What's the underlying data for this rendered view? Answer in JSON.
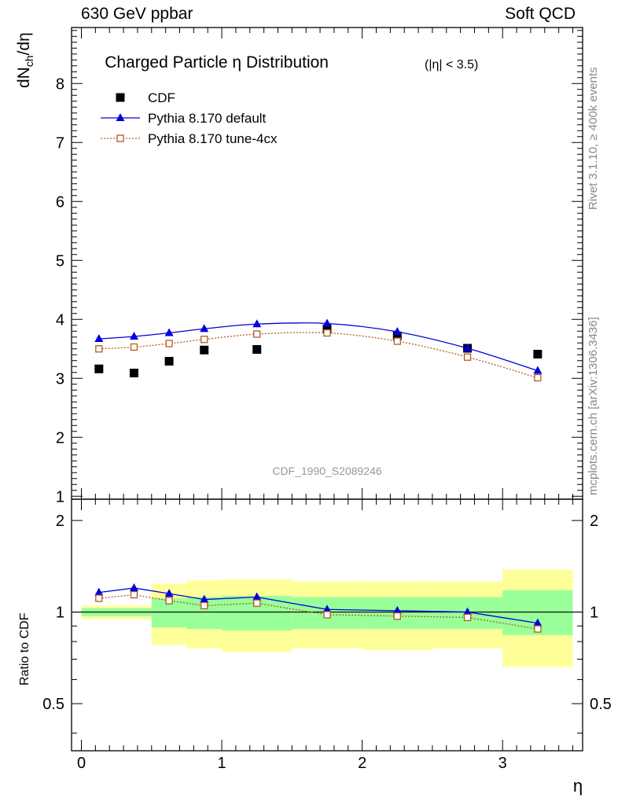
{
  "header": {
    "left": "630 GeV ppbar",
    "right": "Soft QCD"
  },
  "side_text": {
    "rivet": "Rivet 3.1.10, ≥ 400k events",
    "mcplots": "mcplots.cern.ch [arXiv:1306.3436]"
  },
  "chart_data": {
    "type": "scatter",
    "title": "Charged Particle η Distribution",
    "title_suffix": "(|η| < 3.5)",
    "analysis_label": "CDF_1990_S2089246",
    "xlabel": "η",
    "ylabel": "dNch/dη",
    "ylabel_main": "dN",
    "ylabel_sub": "ch",
    "ylabel_tail": "/dη",
    "ratio_ylabel": "Ratio to CDF",
    "xlim": [
      -0.07,
      3.57
    ],
    "ylim": [
      0.95,
      8.95
    ],
    "ratio_ylim": [
      0.35,
      2.35
    ],
    "xticks": [
      0,
      1,
      2,
      3
    ],
    "yticks": [
      1,
      2,
      3,
      4,
      5,
      6,
      7,
      8
    ],
    "ratio_yticks_labeled": [
      0.5,
      1,
      2
    ],
    "legend_position": "top-left",
    "x": [
      0.125,
      0.375,
      0.625,
      0.875,
      1.25,
      1.75,
      2.25,
      2.75,
      3.25
    ],
    "series": [
      {
        "name": "CDF",
        "style": "data",
        "color": "#000000",
        "marker": "square",
        "values": [
          3.16,
          3.09,
          3.29,
          3.48,
          3.49,
          3.84,
          3.72,
          3.51,
          3.41
        ]
      },
      {
        "name": "Pythia 8.170 default",
        "style": "solid",
        "color": "#0000dd",
        "marker": "triangle",
        "values": [
          3.67,
          3.71,
          3.77,
          3.84,
          3.92,
          3.93,
          3.79,
          3.51,
          3.13
        ]
      },
      {
        "name": "Pythia 8.170 tune-4cx",
        "style": "dotted",
        "color": "#b45a1e",
        "marker": "open-square",
        "values": [
          3.5,
          3.53,
          3.59,
          3.66,
          3.75,
          3.77,
          3.63,
          3.36,
          3.01
        ]
      }
    ],
    "ratio_series": [
      {
        "name": "Pythia 8.170 default",
        "values": [
          1.16,
          1.2,
          1.15,
          1.1,
          1.12,
          1.02,
          1.01,
          1.0,
          0.92
        ]
      },
      {
        "name": "Pythia 8.170 tune-4cx",
        "values": [
          1.11,
          1.14,
          1.09,
          1.05,
          1.07,
          0.98,
          0.97,
          0.96,
          0.88
        ]
      }
    ],
    "uncertainty_bands": {
      "edges": [
        0,
        0.5,
        0.75,
        1.0,
        1.5,
        2.0,
        2.5,
        3.0,
        3.5
      ],
      "stat_color": "#99ff99",
      "total_color": "#ffff99",
      "stat_lo": [
        0.97,
        0.89,
        0.88,
        0.87,
        0.88,
        0.88,
        0.88,
        0.84
      ],
      "stat_hi": [
        1.03,
        1.11,
        1.12,
        1.13,
        1.12,
        1.12,
        1.12,
        1.18
      ],
      "total_lo": [
        0.95,
        0.78,
        0.76,
        0.74,
        0.76,
        0.75,
        0.76,
        0.66
      ],
      "total_hi": [
        1.05,
        1.24,
        1.27,
        1.28,
        1.26,
        1.26,
        1.26,
        1.38
      ]
    }
  }
}
